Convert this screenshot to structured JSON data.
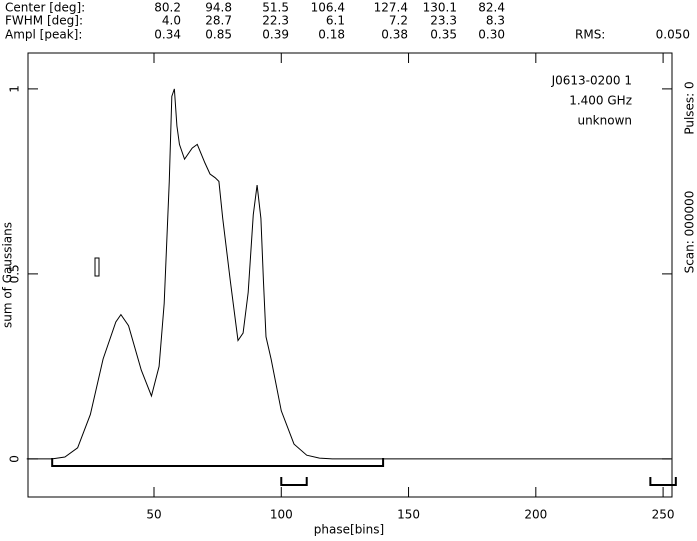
{
  "header": {
    "rows": [
      {
        "label": "Center [deg]:",
        "values": [
          "80.2",
          "94.8",
          "51.5",
          "106.4",
          "127.4",
          "130.1",
          "82.4"
        ]
      },
      {
        "label": "FWHM  [deg]:",
        "values": [
          "4.0",
          "28.7",
          "22.3",
          "6.1",
          "7.2",
          "23.3",
          "8.3"
        ]
      },
      {
        "label": "Ampl  [peak]:",
        "values": [
          "0.34",
          "0.85",
          "0.39",
          "0.18",
          "0.38",
          "0.35",
          "0.30"
        ]
      }
    ],
    "rms_label": "RMS:",
    "rms_value": "0.050"
  },
  "chart_data": {
    "type": "line",
    "x_label": "phase[bins]",
    "y_label": "sum of Gaussians",
    "annotations": [
      "J0613-0200 1",
      "1.400 GHz",
      "unknown"
    ],
    "side_labels": [
      "Pulses: 0",
      "Scan: 000000"
    ],
    "xlim": [
      0.5,
      253.5
    ],
    "ylim": [
      -0.103,
      1.097
    ],
    "xticks": [
      50,
      100,
      150,
      200,
      250
    ],
    "yticks": [
      0,
      0.5,
      1
    ],
    "color": "#000000",
    "x": [
      0,
      10,
      15,
      20,
      25,
      30,
      35,
      37,
      40,
      45,
      49,
      52,
      54,
      56,
      57,
      58,
      59,
      60,
      62,
      65,
      67,
      70,
      72,
      74,
      75.5,
      77,
      80,
      83,
      85,
      87,
      89,
      90.5,
      92,
      93,
      94,
      96,
      100,
      105,
      110,
      115,
      120,
      253
    ],
    "values": [
      0,
      0,
      0.005,
      0.03,
      0.12,
      0.27,
      0.37,
      0.39,
      0.36,
      0.24,
      0.17,
      0.25,
      0.42,
      0.75,
      0.98,
      1.0,
      0.9,
      0.85,
      0.81,
      0.84,
      0.85,
      0.8,
      0.77,
      0.76,
      0.75,
      0.65,
      0.48,
      0.32,
      0.34,
      0.45,
      0.66,
      0.74,
      0.65,
      0.48,
      0.33,
      0.27,
      0.13,
      0.04,
      0.01,
      0.002,
      0,
      0
    ],
    "brackets": [
      [
        10,
        140
      ],
      [
        100,
        110
      ],
      [
        245,
        255
      ]
    ]
  }
}
